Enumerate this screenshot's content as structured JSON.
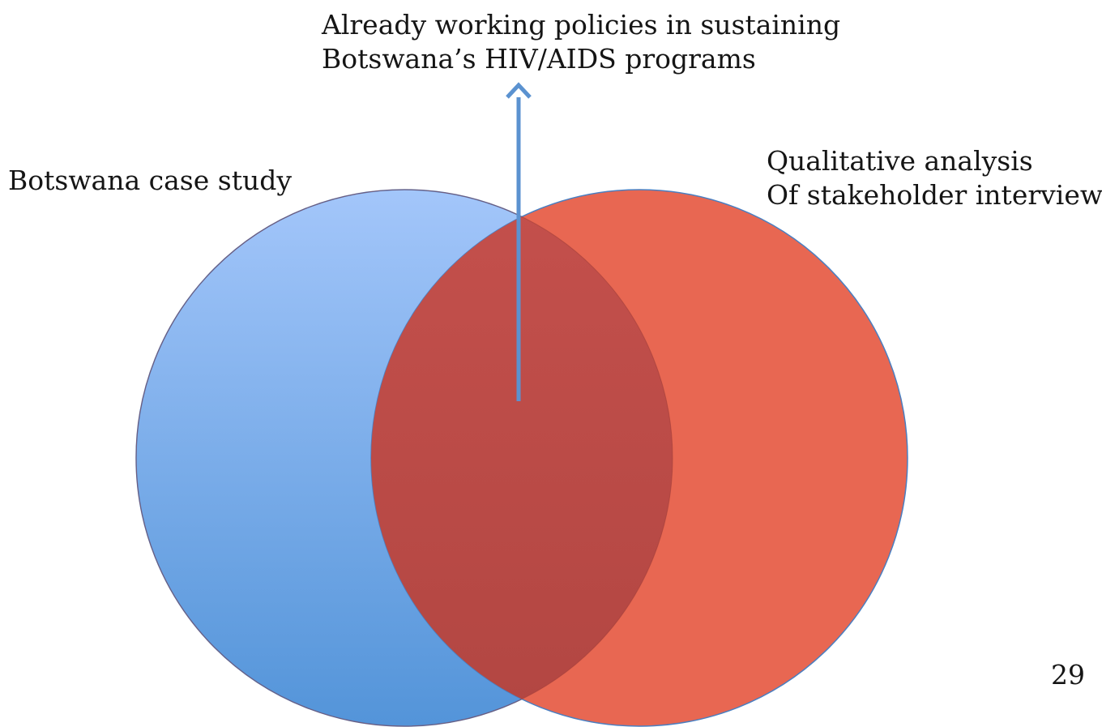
{
  "diagram": {
    "top_label": {
      "line1": "Already working policies in sustaining",
      "line2": "Botswana’s HIV/AIDS programs"
    },
    "left_circle": {
      "label": "Botswana case study",
      "fill_top": "#a3c6fa",
      "fill_bottom": "#5394d9",
      "stroke": "#4a7fc1"
    },
    "right_circle": {
      "label_line1": "Qualitative analysis",
      "label_line2": "Of stakeholder interviews",
      "fill": "#e86752",
      "stroke": "#4a7fc1"
    },
    "overlap": {
      "fill_top": "#c4504c",
      "fill_bottom": "#b24642"
    },
    "arrow": {
      "color": "#5b92d0"
    }
  },
  "page_number": "29"
}
